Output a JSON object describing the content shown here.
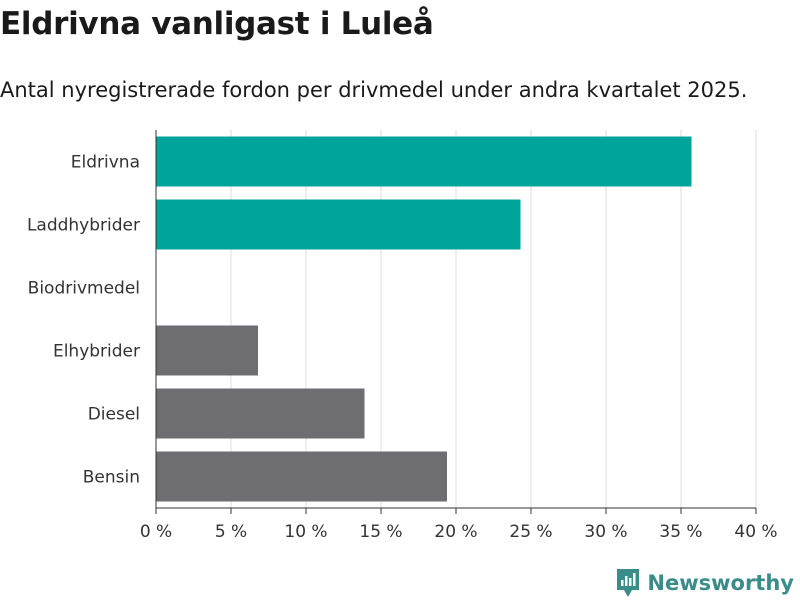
{
  "header": {
    "title": "Eldrivna vanligast i Luleå",
    "subtitle": "Antal nyregistrerade fordon per drivmedel under andra kvartalet 2025."
  },
  "brand": {
    "name": "Newsworthy",
    "icon": "newsworthy-logo-icon",
    "color": "#3a8c88"
  },
  "chart_data": {
    "type": "bar",
    "orientation": "horizontal",
    "categories": [
      "Eldrivna",
      "Laddhybrider",
      "Biodrivmedel",
      "Elhybrider",
      "Diesel",
      "Bensin"
    ],
    "values": [
      35.7,
      24.3,
      0,
      6.8,
      13.9,
      19.4
    ],
    "colors": [
      "#00a49a",
      "#00a49a",
      "#00a49a",
      "#6e6d72",
      "#6e6d72",
      "#6e6d72"
    ],
    "xlim": [
      0,
      40
    ],
    "xticks": [
      0,
      5,
      10,
      15,
      20,
      25,
      30,
      35,
      40
    ],
    "xtick_labels": [
      "0 %",
      "5 %",
      "10 %",
      "15 %",
      "20 %",
      "25 %",
      "30 %",
      "35 %",
      "40 %"
    ],
    "grid": true
  }
}
